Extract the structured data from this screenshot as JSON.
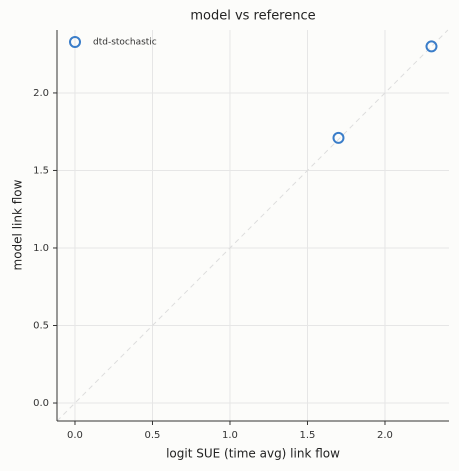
{
  "chart_data": {
    "type": "scatter",
    "title": "model vs reference",
    "xlabel": "logit SUE (time avg) link flow",
    "ylabel": "model link flow",
    "series": [
      {
        "name": "dtd-stochastic",
        "color": "#3a7dc9",
        "x": [
          1.7,
          2.3
        ],
        "values": [
          1.71,
          2.3
        ]
      }
    ],
    "xlim": [
      -0.116,
      2.413
    ],
    "ylim": [
      -0.116,
      2.406
    ],
    "xticks": [
      {
        "value": 0,
        "label": "0.0"
      },
      {
        "value": 0.5,
        "label": "0.5"
      },
      {
        "value": 1,
        "label": "1.0"
      },
      {
        "value": 1.5,
        "label": "1.5"
      },
      {
        "value": 2,
        "label": "2.0"
      }
    ],
    "yticks": [
      {
        "value": 0,
        "label": "0.0"
      },
      {
        "value": 0.5,
        "label": "0.5"
      },
      {
        "value": 1,
        "label": "1.0"
      },
      {
        "value": 1.5,
        "label": "1.5"
      },
      {
        "value": 2,
        "label": "2.0"
      }
    ],
    "grid": true,
    "legend": "upper left"
  }
}
